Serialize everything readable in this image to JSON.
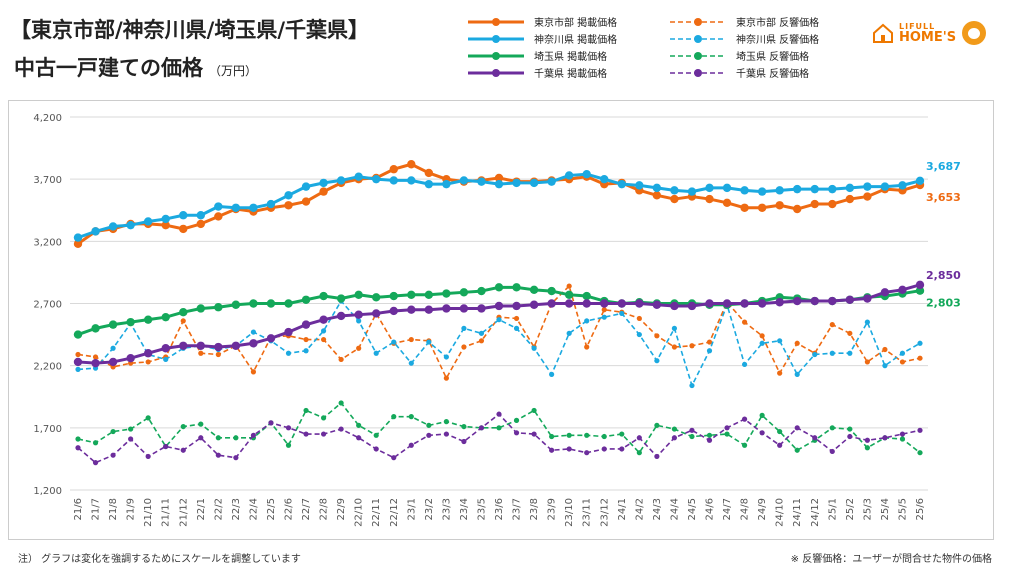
{
  "header": {
    "title_line1": "【東京市部/神奈川県/埼玉県/千葉県】",
    "title_line2": "中古一戸建ての価格",
    "unit": "（万円）"
  },
  "logo": {
    "brand_top": "LIFULL",
    "brand_main": "HOME'S"
  },
  "footer": {
    "note_left": "注） グラフは変化を強調するためにスケールを調整しています",
    "note_right": "※ 反響価格：ユーザーが問合せた物件の価格"
  },
  "colors": {
    "tokyo": "#ee6a12",
    "kanagawa": "#1ba9e0",
    "saitama": "#14a85a",
    "chiba": "#6c2d9c"
  },
  "chart_data": {
    "type": "line",
    "ylim": [
      1200,
      4200
    ],
    "yticks": [
      1200,
      1700,
      2200,
      2700,
      3200,
      3700,
      4200
    ],
    "ytick_labels": [
      "1,200",
      "1,700",
      "2,200",
      "2,700",
      "3,200",
      "3,700",
      "4,200"
    ],
    "grid": "horizontal",
    "legend_placement": "top-right",
    "categories": [
      "21/6",
      "21/7",
      "21/8",
      "21/9",
      "21/10",
      "21/11",
      "21/12",
      "22/1",
      "22/2",
      "22/3",
      "22/4",
      "22/5",
      "22/6",
      "22/7",
      "22/8",
      "22/9",
      "22/10",
      "22/11",
      "22/12",
      "23/1",
      "23/2",
      "23/3",
      "23/4",
      "23/5",
      "23/6",
      "23/7",
      "23/8",
      "23/9",
      "23/10",
      "23/11",
      "23/12",
      "24/1",
      "24/2",
      "24/3",
      "24/4",
      "24/5",
      "24/6",
      "24/7",
      "24/8",
      "24/9",
      "24/10",
      "24/11",
      "24/12",
      "25/1",
      "25/2",
      "25/3",
      "25/4",
      "25/5",
      "25/6"
    ],
    "series": [
      {
        "name": "東京市部 掲載価格",
        "key": "tokyo",
        "style": "solid",
        "end_label": "3,653",
        "values": [
          3180,
          3280,
          3300,
          3340,
          3340,
          3330,
          3300,
          3340,
          3400,
          3460,
          3440,
          3470,
          3490,
          3520,
          3600,
          3670,
          3700,
          3710,
          3780,
          3820,
          3750,
          3700,
          3680,
          3690,
          3710,
          3680,
          3680,
          3690,
          3700,
          3720,
          3660,
          3670,
          3610,
          3570,
          3540,
          3560,
          3540,
          3510,
          3470,
          3470,
          3490,
          3460,
          3500,
          3500,
          3540,
          3560,
          3620,
          3610,
          3653
        ]
      },
      {
        "name": "神奈川県 掲載価格",
        "key": "kanagawa",
        "style": "solid",
        "end_label": "3,687",
        "values": [
          3230,
          3280,
          3320,
          3330,
          3360,
          3380,
          3410,
          3410,
          3480,
          3470,
          3470,
          3500,
          3570,
          3640,
          3670,
          3690,
          3720,
          3700,
          3690,
          3690,
          3660,
          3660,
          3690,
          3680,
          3660,
          3670,
          3670,
          3680,
          3730,
          3740,
          3700,
          3660,
          3650,
          3630,
          3610,
          3600,
          3630,
          3630,
          3610,
          3600,
          3610,
          3620,
          3620,
          3620,
          3630,
          3640,
          3640,
          3650,
          3687
        ]
      },
      {
        "name": "埼玉県 掲載価格",
        "key": "saitama",
        "style": "solid",
        "end_label": "2,803",
        "values": [
          2450,
          2500,
          2530,
          2550,
          2570,
          2590,
          2630,
          2660,
          2670,
          2690,
          2700,
          2700,
          2700,
          2730,
          2760,
          2740,
          2770,
          2750,
          2760,
          2770,
          2770,
          2780,
          2790,
          2800,
          2830,
          2830,
          2810,
          2800,
          2770,
          2760,
          2720,
          2700,
          2710,
          2700,
          2700,
          2700,
          2690,
          2690,
          2700,
          2720,
          2750,
          2740,
          2720,
          2720,
          2730,
          2750,
          2760,
          2780,
          2803
        ]
      },
      {
        "name": "千葉県 掲載価格",
        "key": "chiba",
        "style": "solid",
        "end_label": "2,850",
        "values": [
          2230,
          2220,
          2230,
          2260,
          2300,
          2340,
          2360,
          2360,
          2350,
          2360,
          2380,
          2420,
          2470,
          2530,
          2570,
          2600,
          2610,
          2620,
          2640,
          2650,
          2650,
          2660,
          2660,
          2660,
          2680,
          2680,
          2690,
          2700,
          2700,
          2700,
          2700,
          2700,
          2700,
          2690,
          2680,
          2680,
          2700,
          2700,
          2700,
          2700,
          2710,
          2720,
          2720,
          2720,
          2730,
          2740,
          2790,
          2810,
          2850
        ]
      },
      {
        "name": "東京市部 反響価格",
        "key": "tokyo",
        "style": "dashed",
        "values": [
          2290,
          2270,
          2190,
          2220,
          2230,
          2270,
          2560,
          2300,
          2290,
          2360,
          2150,
          2430,
          2440,
          2410,
          2410,
          2250,
          2340,
          2620,
          2380,
          2410,
          2400,
          2100,
          2350,
          2400,
          2590,
          2580,
          2350,
          2700,
          2840,
          2350,
          2650,
          2630,
          2580,
          2440,
          2350,
          2360,
          2390,
          2710,
          2550,
          2440,
          2140,
          2380,
          2300,
          2530,
          2460,
          2230,
          2330,
          2230,
          2260
        ]
      },
      {
        "name": "神奈川県 反響価格",
        "key": "kanagawa",
        "style": "dashed",
        "values": [
          2170,
          2180,
          2340,
          2540,
          2290,
          2250,
          2340,
          2360,
          2330,
          2360,
          2470,
          2400,
          2300,
          2320,
          2480,
          2720,
          2560,
          2300,
          2390,
          2220,
          2390,
          2270,
          2500,
          2460,
          2570,
          2500,
          2340,
          2130,
          2460,
          2560,
          2590,
          2620,
          2450,
          2240,
          2500,
          2040,
          2320,
          2690,
          2210,
          2380,
          2400,
          2130,
          2290,
          2300,
          2300,
          2550,
          2200,
          2300,
          2380
        ]
      },
      {
        "name": "埼玉県 反響価格",
        "key": "saitama",
        "style": "dashed",
        "values": [
          1610,
          1580,
          1670,
          1690,
          1780,
          1550,
          1710,
          1730,
          1620,
          1620,
          1620,
          1740,
          1560,
          1840,
          1780,
          1900,
          1720,
          1640,
          1790,
          1790,
          1720,
          1750,
          1710,
          1700,
          1700,
          1760,
          1840,
          1630,
          1640,
          1640,
          1630,
          1650,
          1500,
          1720,
          1690,
          1630,
          1640,
          1650,
          1560,
          1800,
          1670,
          1520,
          1600,
          1700,
          1690,
          1540,
          1620,
          1610,
          1500
        ]
      },
      {
        "name": "千葉県 反響価格",
        "key": "chiba",
        "style": "dashed",
        "values": [
          1540,
          1420,
          1480,
          1610,
          1470,
          1550,
          1520,
          1620,
          1480,
          1460,
          1640,
          1740,
          1700,
          1650,
          1650,
          1690,
          1620,
          1530,
          1460,
          1560,
          1640,
          1650,
          1590,
          1700,
          1810,
          1660,
          1650,
          1520,
          1530,
          1500,
          1530,
          1530,
          1620,
          1470,
          1620,
          1680,
          1600,
          1700,
          1770,
          1660,
          1560,
          1700,
          1620,
          1510,
          1630,
          1600,
          1620,
          1650,
          1680
        ]
      }
    ]
  }
}
